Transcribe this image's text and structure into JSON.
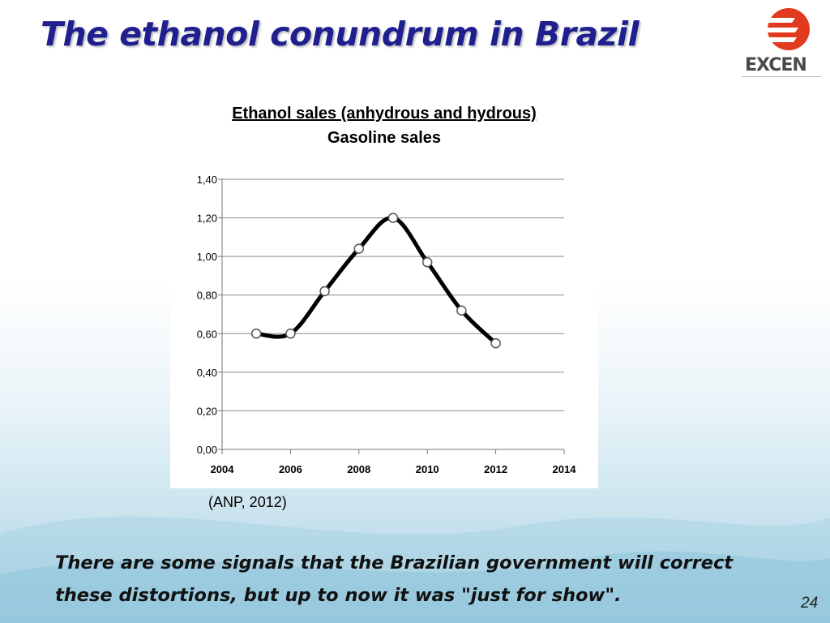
{
  "slide": {
    "title": "The ethanol conundrum in Brazil",
    "source": "(ANP, 2012)",
    "body_text": "There are some signals that the Brazilian government will correct these distortions, but up to now it was \"just for show\".",
    "page_number": "24"
  },
  "logo": {
    "text": "EXCEN",
    "accent_color": "#e23a1e",
    "text_color": "#4a4a4a"
  },
  "colors": {
    "title": "#1f1f8f",
    "line": "#000000",
    "marker_fill": "#ffffff"
  },
  "chart_data": {
    "type": "line",
    "title": "Ethanol sales (anhydrous and hydrous)",
    "subtitle": "Gasoline sales",
    "xlabel": "",
    "ylabel": "",
    "x_tick_labels": [
      "2004",
      "2006",
      "2008",
      "2010",
      "2012",
      "2014"
    ],
    "y_tick_labels": [
      "0,00",
      "0,20",
      "0,40",
      "0,60",
      "0,80",
      "1,00",
      "1,20",
      "1,40"
    ],
    "xlim": [
      2004,
      2014
    ],
    "ylim": [
      0,
      1.4
    ],
    "grid": "horizontal",
    "smooth": true,
    "series": [
      {
        "x": [
          2005,
          2006,
          2007,
          2008,
          2009,
          2010,
          2011,
          2012
        ],
        "values": [
          0.6,
          0.6,
          0.82,
          1.04,
          1.2,
          0.97,
          0.72,
          0.55
        ]
      }
    ]
  }
}
